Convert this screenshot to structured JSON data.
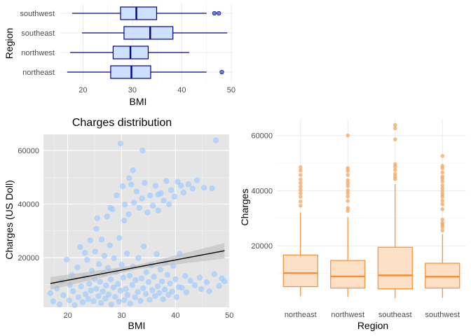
{
  "chart_data": [
    {
      "type": "boxplot",
      "orientation": "horizontal",
      "xlabel": "BMI",
      "ylabel": "Region",
      "categories": [
        "northeast",
        "northwest",
        "southeast",
        "southwest"
      ],
      "xlim": [
        15.4,
        50.3
      ],
      "x_ticks": [
        20,
        30,
        40,
        50
      ],
      "x_tick_labels": [
        "20",
        "30",
        "40",
        "50"
      ],
      "boxes": [
        {
          "category": "northeast",
          "whisker_low": 16.8,
          "q1": 25.6,
          "median": 29.8,
          "q3": 33.7,
          "whisker_high": 45.0,
          "outliers": [
            48.1
          ]
        },
        {
          "category": "northwest",
          "whisker_low": 17.4,
          "q1": 26.1,
          "median": 29.6,
          "q3": 33.2,
          "whisker_high": 41.5,
          "outliers": []
        },
        {
          "category": "southeast",
          "whisker_low": 19.8,
          "q1": 28.3,
          "median": 33.6,
          "q3": 38.2,
          "whisker_high": 49.2,
          "outliers": []
        },
        {
          "category": "southwest",
          "whisker_low": 17.8,
          "q1": 27.6,
          "median": 30.8,
          "q3": 34.9,
          "whisker_high": 45.0,
          "outliers": [
            46.6,
            47.5
          ]
        }
      ],
      "colors": {
        "fill": "#cce0ff",
        "stroke": "#00008b",
        "outlier": "#6a7fd9"
      },
      "grid": true
    },
    {
      "type": "scatter",
      "title": "Charges distribution",
      "xlabel": "BMI",
      "ylabel": "Charges (US Doll)",
      "xlim": [
        15.5,
        50.1
      ],
      "ylim": [
        1500,
        66000
      ],
      "x_ticks": [
        20,
        30,
        40,
        50
      ],
      "x_tick_labels": [
        "20",
        "30",
        "40",
        "50"
      ],
      "y_ticks": [
        20000,
        40000,
        60000
      ],
      "y_tick_labels": [
        "20000",
        "40000",
        "60000"
      ],
      "points": [
        [
          16.8,
          6700
        ],
        [
          17.3,
          3700
        ],
        [
          18.0,
          8500
        ],
        [
          18.5,
          2600
        ],
        [
          18.9,
          11200
        ],
        [
          19.2,
          6000
        ],
        [
          19.8,
          19300
        ],
        [
          20.3,
          4100
        ],
        [
          20.4,
          9800
        ],
        [
          20.8,
          13500
        ],
        [
          21.0,
          7500
        ],
        [
          21.3,
          2300
        ],
        [
          21.8,
          16400
        ],
        [
          22.0,
          5300
        ],
        [
          22.3,
          24000
        ],
        [
          22.5,
          9300
        ],
        [
          22.8,
          3400
        ],
        [
          23.0,
          12900
        ],
        [
          23.2,
          21800
        ],
        [
          23.3,
          6400
        ],
        [
          23.6,
          19200
        ],
        [
          23.8,
          4600
        ],
        [
          24.0,
          10300
        ],
        [
          24.2,
          26500
        ],
        [
          24.3,
          7800
        ],
        [
          24.5,
          15100
        ],
        [
          24.8,
          3800
        ],
        [
          25.0,
          12100
        ],
        [
          25.1,
          22300
        ],
        [
          25.3,
          8400
        ],
        [
          25.5,
          34700
        ],
        [
          25.7,
          5700
        ],
        [
          25.8,
          17600
        ],
        [
          26.0,
          11000
        ],
        [
          26.2,
          3100
        ],
        [
          26.3,
          26800
        ],
        [
          26.5,
          7400
        ],
        [
          26.7,
          14200
        ],
        [
          26.8,
          20700
        ],
        [
          27.0,
          4800
        ],
        [
          27.1,
          9600
        ],
        [
          27.3,
          35400
        ],
        [
          27.5,
          16200
        ],
        [
          27.6,
          6300
        ],
        [
          27.8,
          24600
        ],
        [
          28.0,
          11900
        ],
        [
          28.1,
          2500
        ],
        [
          28.3,
          38100
        ],
        [
          28.5,
          8900
        ],
        [
          28.6,
          19800
        ],
        [
          28.8,
          5400
        ],
        [
          29.0,
          14800
        ],
        [
          29.1,
          43300
        ],
        [
          29.3,
          10200
        ],
        [
          29.5,
          3600
        ],
        [
          29.6,
          27400
        ],
        [
          29.8,
          7700
        ],
        [
          30.0,
          17400
        ],
        [
          30.2,
          46700
        ],
        [
          30.3,
          12600
        ],
        [
          30.5,
          4200
        ],
        [
          30.6,
          39800
        ],
        [
          30.8,
          8300
        ],
        [
          31.0,
          21600
        ],
        [
          31.1,
          6100
        ],
        [
          31.3,
          36200
        ],
        [
          31.5,
          13300
        ],
        [
          31.6,
          2900
        ],
        [
          31.8,
          47300
        ],
        [
          32.0,
          9800
        ],
        [
          32.1,
          16700
        ],
        [
          32.3,
          40600
        ],
        [
          32.5,
          5200
        ],
        [
          32.6,
          11600
        ],
        [
          32.8,
          44700
        ],
        [
          33.0,
          7200
        ],
        [
          33.1,
          19900
        ],
        [
          33.3,
          38600
        ],
        [
          33.5,
          3900
        ],
        [
          33.7,
          12300
        ],
        [
          33.8,
          42100
        ],
        [
          34.0,
          8600
        ],
        [
          34.1,
          24200
        ],
        [
          34.3,
          47900
        ],
        [
          34.5,
          6500
        ],
        [
          34.6,
          14600
        ],
        [
          34.8,
          36900
        ],
        [
          35.0,
          10900
        ],
        [
          35.2,
          4300
        ],
        [
          35.3,
          43200
        ],
        [
          35.5,
          17100
        ],
        [
          35.7,
          7900
        ],
        [
          35.8,
          39400
        ],
        [
          36.0,
          12900
        ],
        [
          36.2,
          5700
        ],
        [
          36.3,
          46800
        ],
        [
          36.5,
          21300
        ],
        [
          36.7,
          9300
        ],
        [
          36.8,
          37600
        ],
        [
          37.0,
          6800
        ],
        [
          37.2,
          15600
        ],
        [
          37.3,
          44100
        ],
        [
          37.5,
          11100
        ],
        [
          37.7,
          4500
        ],
        [
          37.8,
          41300
        ],
        [
          38.0,
          8100
        ],
        [
          38.2,
          18400
        ],
        [
          38.3,
          48600
        ],
        [
          38.5,
          13600
        ],
        [
          38.7,
          6200
        ],
        [
          38.8,
          39900
        ],
        [
          39.0,
          10400
        ],
        [
          39.2,
          45200
        ],
        [
          39.4,
          7400
        ],
        [
          39.6,
          16900
        ],
        [
          39.8,
          42800
        ],
        [
          40.0,
          12000
        ],
        [
          40.2,
          5300
        ],
        [
          40.4,
          48300
        ],
        [
          40.6,
          9100
        ],
        [
          40.8,
          21400
        ],
        [
          41.0,
          46900
        ],
        [
          41.2,
          8800
        ],
        [
          41.5,
          44300
        ],
        [
          41.8,
          13200
        ],
        [
          42.0,
          7100
        ],
        [
          42.4,
          47400
        ],
        [
          42.8,
          11400
        ],
        [
          43.2,
          45800
        ],
        [
          43.6,
          9700
        ],
        [
          44.0,
          48900
        ],
        [
          44.5,
          12600
        ],
        [
          44.8,
          8300
        ],
        [
          45.3,
          46100
        ],
        [
          45.8,
          10800
        ],
        [
          46.3,
          7500
        ],
        [
          46.8,
          45900
        ],
        [
          47.2,
          13900
        ],
        [
          47.5,
          63800
        ],
        [
          48.1,
          9500
        ],
        [
          48.6,
          12300
        ],
        [
          49.1,
          11200
        ],
        [
          29.8,
          62600
        ],
        [
          33.9,
          60000
        ],
        [
          32.1,
          52600
        ],
        [
          31.4,
          49700
        ],
        [
          36.8,
          43600
        ],
        [
          27.9,
          38600
        ],
        [
          30.5,
          33900
        ],
        [
          25.3,
          30800
        ]
      ],
      "trend_line": {
        "x": [
          16.8,
          49.1
        ],
        "y": [
          10400,
          22600
        ]
      },
      "colors": {
        "points": "#99c9ff",
        "line": "#000000",
        "band": "#bdbdbd",
        "panel": "#e5e5e5"
      },
      "grid": true
    },
    {
      "type": "boxplot",
      "orientation": "vertical",
      "xlabel": "Region",
      "ylabel": "Charges",
      "categories": [
        "northeast",
        "northwest",
        "southeast",
        "southwest"
      ],
      "ylim": [
        0,
        66000
      ],
      "y_ticks": [
        20000,
        40000,
        60000
      ],
      "y_tick_labels": [
        "20000",
        "40000",
        "60000"
      ],
      "boxes": [
        {
          "category": "northeast",
          "whisker_low": 1700,
          "q1": 5200,
          "median": 10100,
          "q3": 16700,
          "whisker_high": 32100,
          "outliers": [
            34600,
            36100,
            37800,
            39100,
            40300,
            41500,
            42800,
            44100,
            45700,
            47300,
            48500
          ]
        },
        {
          "category": "northwest",
          "whisker_low": 1600,
          "q1": 4700,
          "median": 8900,
          "q3": 14700,
          "whisker_high": 30300,
          "outliers": [
            32700,
            33700,
            36300,
            37900,
            39100,
            40100,
            41700,
            42700,
            43800,
            45700,
            47200,
            48200,
            60000
          ]
        },
        {
          "category": "southeast",
          "whisker_low": 1100,
          "q1": 4400,
          "median": 9300,
          "q3": 19500,
          "whisker_high": 42400,
          "outliers": [
            44200,
            45100,
            46100,
            47500,
            48700,
            49600,
            58600,
            62600,
            63800
          ]
        },
        {
          "category": "southwest",
          "whisker_low": 1200,
          "q1": 4700,
          "median": 8800,
          "q3": 13700,
          "whisker_high": 24200,
          "outliers": [
            25600,
            26800,
            27600,
            28300,
            29500,
            33300,
            35100,
            36400,
            37800,
            38700,
            39700,
            40800,
            41900,
            43300,
            44300,
            45100,
            46600,
            48100,
            49000,
            52600
          ]
        }
      ],
      "colors": {
        "fill": "#fde0c5",
        "stroke": "#f58f35",
        "outlier": "#f5a055"
      },
      "grid": true
    }
  ]
}
